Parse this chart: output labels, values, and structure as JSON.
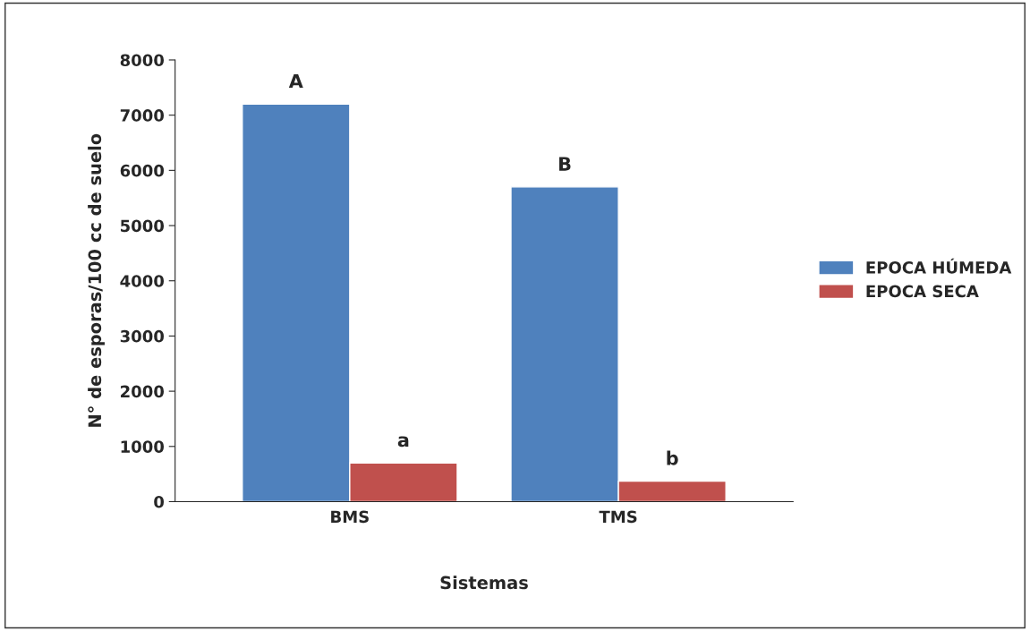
{
  "chart_data": {
    "type": "bar",
    "xlabel": "Sistemas",
    "ylabel": "N° de esporas/100 cc de suelo",
    "categories": [
      "BMS",
      "TMS"
    ],
    "series": [
      {
        "name": "EPOCA HÚMEDA",
        "color": "#4f81bd",
        "values": [
          7200,
          5700
        ]
      },
      {
        "name": "EPOCA SECA",
        "color": "#c0504d",
        "values": [
          700,
          370
        ]
      }
    ],
    "ylim": [
      0,
      8000
    ],
    "yticks": [
      0,
      1000,
      2000,
      3000,
      4000,
      5000,
      6000,
      7000,
      8000
    ],
    "grid": false,
    "legend": "right",
    "annotations": [
      {
        "text": "A",
        "x": "BMS",
        "y": 7200
      },
      {
        "text": "a",
        "x": "BMS",
        "y": 700
      },
      {
        "text": "B",
        "x": "TMS",
        "y": 5700
      },
      {
        "text": "b",
        "x": "TMS",
        "y": 370
      }
    ]
  }
}
